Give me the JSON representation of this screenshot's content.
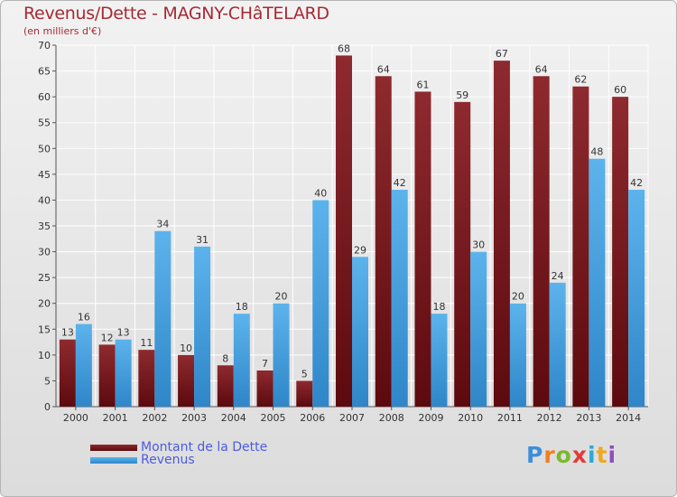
{
  "header": {
    "title": "Revenus/Dette - MAGNY-CHâTELARD",
    "subtitle": "(en milliers d'€)"
  },
  "colors": {
    "dette": "#7a1a1e",
    "revenus": "#4aa3e0"
  },
  "legend": {
    "items": [
      {
        "label": "Montant de la Dette",
        "color": "#7a1a1e"
      },
      {
        "label": "Revenus",
        "color": "#4aa3e0"
      }
    ]
  },
  "logo": {
    "letters": [
      "P",
      "r",
      "o",
      "x",
      "i",
      "t",
      "i"
    ],
    "colors": [
      "#3c8fd8",
      "#f07f1e",
      "#7cb82f",
      "#e23a3a",
      "#2aa9d6",
      "#f0a81e",
      "#8c4fbf"
    ]
  },
  "chart_data": {
    "type": "bar",
    "categories": [
      "2000",
      "2001",
      "2002",
      "2003",
      "2004",
      "2005",
      "2006",
      "2007",
      "2008",
      "2009",
      "2010",
      "2011",
      "2012",
      "2013",
      "2014"
    ],
    "series": [
      {
        "name": "Montant de la Dette",
        "values": [
          13,
          12,
          11,
          10,
          8,
          7,
          5,
          68,
          64,
          61,
          59,
          67,
          64,
          62,
          60
        ]
      },
      {
        "name": "Revenus",
        "values": [
          16,
          13,
          34,
          31,
          18,
          20,
          40,
          29,
          42,
          18,
          30,
          20,
          24,
          48,
          42
        ]
      }
    ],
    "ylim": [
      0,
      70
    ],
    "yticks": [
      0,
      5,
      10,
      15,
      20,
      25,
      30,
      35,
      40,
      45,
      50,
      55,
      60,
      65,
      70
    ],
    "grid": true,
    "legend_position": "bottom-left"
  }
}
